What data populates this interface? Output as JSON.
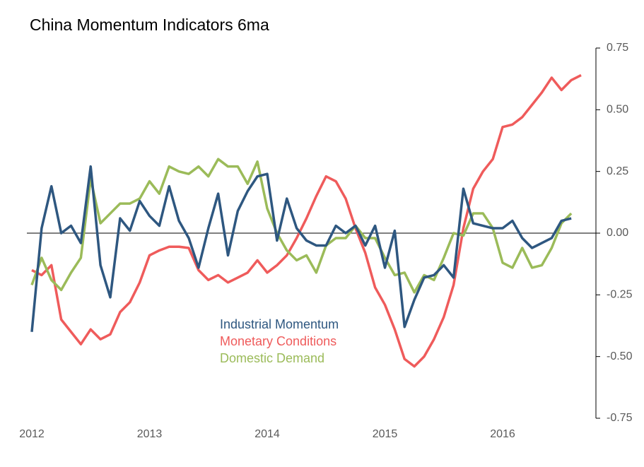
{
  "chart_data": {
    "type": "line",
    "title": "China Momentum Indicators 6ma",
    "categories": [
      "2012",
      null,
      null,
      null,
      null,
      null,
      null,
      null,
      null,
      null,
      null,
      null,
      "2013",
      null,
      null,
      null,
      null,
      null,
      null,
      null,
      null,
      null,
      null,
      null,
      "2014",
      null,
      null,
      null,
      null,
      null,
      null,
      null,
      null,
      null,
      null,
      null,
      "2015",
      null,
      null,
      null,
      null,
      null,
      null,
      null,
      null,
      null,
      null,
      null,
      "2016",
      null,
      null,
      null,
      null,
      null,
      null,
      null,
      null
    ],
    "series": [
      {
        "name": "Industrial Momentum",
        "color": "#2e5780",
        "values": [
          -0.4,
          0.02,
          0.19,
          0.0,
          0.03,
          -0.04,
          0.27,
          -0.13,
          -0.26,
          0.06,
          0.01,
          0.13,
          0.07,
          0.03,
          0.19,
          0.05,
          -0.02,
          -0.14,
          0.02,
          0.16,
          -0.09,
          0.09,
          0.17,
          0.23,
          0.24,
          -0.03,
          0.14,
          0.02,
          -0.03,
          -0.05,
          -0.05,
          0.03,
          0.0,
          0.03,
          -0.05,
          0.03,
          -0.14,
          0.01,
          -0.38,
          -0.27,
          -0.18,
          -0.17,
          -0.13,
          -0.18,
          0.18,
          0.04,
          0.03,
          0.02,
          0.02,
          0.05,
          -0.02,
          -0.06,
          -0.04,
          -0.02,
          0.05,
          0.06,
          null
        ]
      },
      {
        "name": "Monetary Conditions",
        "color": "#ef5b5b",
        "values": [
          -0.15,
          -0.17,
          -0.13,
          -0.35,
          -0.4,
          -0.45,
          -0.39,
          -0.43,
          -0.41,
          -0.32,
          -0.28,
          -0.2,
          -0.09,
          -0.07,
          -0.055,
          -0.055,
          -0.06,
          -0.15,
          -0.19,
          -0.17,
          -0.2,
          -0.18,
          -0.16,
          -0.11,
          -0.16,
          -0.13,
          -0.09,
          -0.02,
          0.06,
          0.15,
          0.23,
          0.21,
          0.14,
          0.02,
          -0.08,
          -0.22,
          -0.29,
          -0.39,
          -0.51,
          -0.54,
          -0.5,
          -0.43,
          -0.34,
          -0.21,
          0.02,
          0.18,
          0.25,
          0.3,
          0.43,
          0.44,
          0.47,
          0.52,
          0.57,
          0.63,
          0.58,
          0.62,
          0.64
        ]
      },
      {
        "name": "Domestic Demand",
        "color": "#9bbb59",
        "values": [
          -0.21,
          -0.1,
          -0.19,
          -0.23,
          -0.16,
          -0.1,
          0.22,
          0.04,
          0.08,
          0.12,
          0.12,
          0.14,
          0.21,
          0.16,
          0.27,
          0.25,
          0.24,
          0.27,
          0.23,
          0.3,
          0.27,
          0.27,
          0.2,
          0.29,
          0.1,
          0.0,
          -0.07,
          -0.11,
          -0.09,
          -0.16,
          -0.05,
          -0.02,
          -0.02,
          0.03,
          -0.02,
          -0.02,
          -0.1,
          -0.17,
          -0.16,
          -0.24,
          -0.17,
          -0.19,
          -0.1,
          0.0,
          -0.01,
          0.08,
          0.08,
          0.02,
          -0.12,
          -0.14,
          -0.06,
          -0.14,
          -0.13,
          -0.06,
          0.04,
          0.08,
          null
        ]
      }
    ],
    "ylim": [
      -0.75,
      0.75
    ],
    "yticks": [
      0.75,
      {
        "value": 0.5,
        "label": "0.50"
      },
      0.25,
      {
        "value": 0,
        "label": "0.00"
      },
      -0.25,
      {
        "value": -0.5,
        "label": "-0.50"
      },
      -0.75
    ]
  }
}
